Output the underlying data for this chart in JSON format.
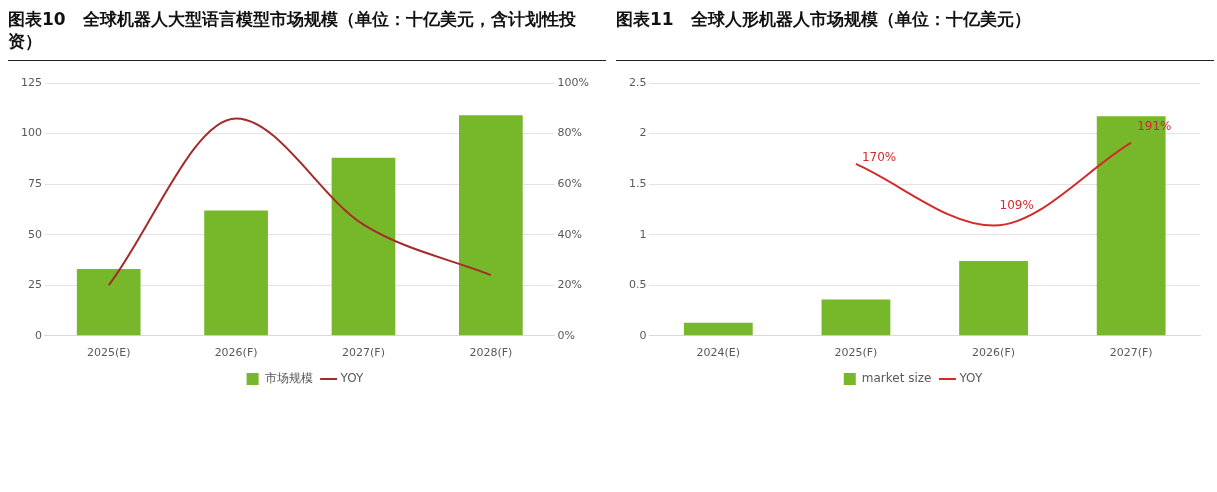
{
  "chart_data": [
    {
      "type": "bar",
      "title": "图表10　全球机器人大型语言模型市场规模（单位：十亿美元，含计划性投资）",
      "categories": [
        "2025(E)",
        "2026(F)",
        "2027(F)",
        "2028(F)"
      ],
      "series": [
        {
          "name": "市场规模",
          "type": "bar",
          "color": "#76b82a",
          "values": [
            33,
            62,
            88,
            109
          ]
        },
        {
          "name": "YOY",
          "type": "line",
          "color": "#a52a2a",
          "axis": "y2",
          "values": [
            20,
            86,
            44,
            24
          ]
        }
      ],
      "ylim": [
        0,
        125
      ],
      "yticks": [
        0,
        25,
        50,
        75,
        100,
        125
      ],
      "y2lim": [
        0,
        100
      ],
      "y2ticks": [
        {
          "value": 0,
          "label": "0%"
        },
        {
          "value": 20,
          "label": "20%"
        },
        {
          "value": 40,
          "label": "40%"
        },
        {
          "value": 60,
          "label": "60%"
        },
        {
          "value": 80,
          "label": "80%"
        },
        {
          "value": 100,
          "label": "100%"
        }
      ],
      "grid": "y",
      "legend": "bottom",
      "marker": "none"
    },
    {
      "type": "bar",
      "title": "图表11　全球人形机器人市场规模（单位：十亿美元）",
      "categories": [
        "2024(E)",
        "2025(F)",
        "2026(F)",
        "2027(F)"
      ],
      "series": [
        {
          "name": "market size",
          "type": "bar",
          "color": "#76b82a",
          "values": [
            0.13,
            0.36,
            0.74,
            2.17
          ]
        },
        {
          "name": "YOY",
          "type": "line",
          "color": "#d42a2a",
          "values": [
            null,
            1.7,
            1.09,
            1.91
          ],
          "value_labels": [
            null,
            "170%",
            "109%",
            "191%"
          ]
        }
      ],
      "ylim": [
        0,
        2.5
      ],
      "yticks": [
        0,
        0.5,
        1,
        1.5,
        2,
        2.5
      ],
      "grid": "y",
      "legend": "bottom",
      "marker": "none"
    }
  ]
}
